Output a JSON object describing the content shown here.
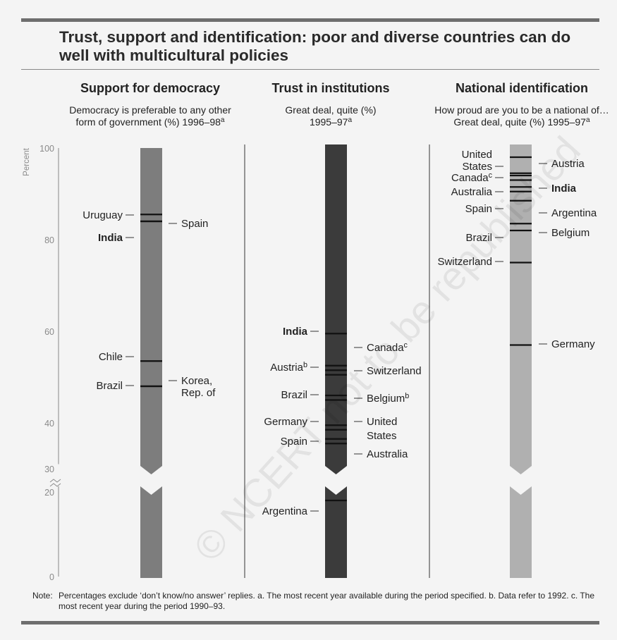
{
  "title": "Trust, support and identification: poor and diverse countries can do well with multicultural policies",
  "watermark": "© NCERT not to be republished",
  "note": {
    "lead": "Note:",
    "text": "Percentages exclude ‘don’t know/no answer’ replies. a. The most recent year available during the period specified. b. Data refer to 1992.  c. The most recent year during the period 1990–93."
  },
  "colors": {
    "bar1": "#7d7d7d",
    "bar2": "#3b3b3b",
    "bar3": "#b0b0b0",
    "text": "#222222",
    "axis": "#888888"
  },
  "chart_data": {
    "type": "bar",
    "ylabel": "Percent",
    "y_ticks": [
      0,
      20,
      30,
      40,
      60,
      80,
      100
    ],
    "axis_break": [
      20,
      30
    ],
    "panels": [
      {
        "title": "Support for democracy",
        "subtitle": [
          "Democracy is preferable to any other",
          "form of government (%) 1996–98"
        ],
        "subtitle_sup": "a",
        "points": [
          {
            "label": "Uruguay",
            "value": 85.5,
            "side": "left"
          },
          {
            "label": "Spain",
            "value": 84,
            "side": "right"
          },
          {
            "label": "India",
            "value": 84,
            "side": "left",
            "bold": true
          },
          {
            "label": "Chile",
            "value": 53.5,
            "side": "left"
          },
          {
            "label": "Brazil",
            "value": 48,
            "side": "left"
          },
          {
            "label": "Korea, Rep. of",
            "value": 48,
            "side": "right"
          }
        ]
      },
      {
        "title": "Trust in institutions",
        "subtitle": [
          "Great deal, quite (%)",
          "1995–97"
        ],
        "subtitle_sup": "a",
        "points": [
          {
            "label": "India",
            "value": 59.5,
            "side": "left",
            "bold": true
          },
          {
            "label": "Canada",
            "sup": "c",
            "value": 52.5,
            "side": "right"
          },
          {
            "label": "Austria",
            "sup": "b",
            "value": 51.5,
            "side": "left"
          },
          {
            "label": "Switzerland",
            "value": 50.5,
            "side": "right"
          },
          {
            "label": "Brazil",
            "value": 46,
            "side": "left"
          },
          {
            "label": "Belgium",
            "sup": "b",
            "value": 45,
            "side": "right"
          },
          {
            "label": "Germany",
            "value": 39.5,
            "side": "left"
          },
          {
            "label": "United States",
            "value": 38.5,
            "side": "right"
          },
          {
            "label": "Spain",
            "value": 36.5,
            "side": "left"
          },
          {
            "label": "Australia",
            "value": 35.5,
            "side": "right"
          },
          {
            "label": "Argentina",
            "value": 18,
            "side": "left"
          }
        ]
      },
      {
        "title": "National identification",
        "subtitle": [
          "How proud are you to be a national of…",
          "Great deal, quite (%) 1995–97"
        ],
        "subtitle_sup": "a",
        "points": [
          {
            "label": "United States",
            "value": 98,
            "side": "left"
          },
          {
            "label": "Canada",
            "sup": "c",
            "value": 94.5,
            "side": "left"
          },
          {
            "label": "Austria",
            "value": 94,
            "side": "right"
          },
          {
            "label": "Australia",
            "value": 93,
            "side": "left"
          },
          {
            "label": "India",
            "value": 91.5,
            "side": "right",
            "bold": true
          },
          {
            "label": "Spain",
            "value": 90.5,
            "side": "left"
          },
          {
            "label": "Argentina",
            "value": 88.5,
            "side": "right"
          },
          {
            "label": "Brazil",
            "value": 83.5,
            "side": "left"
          },
          {
            "label": "Belgium",
            "value": 82,
            "side": "right"
          },
          {
            "label": "Switzerland",
            "value": 75,
            "side": "left"
          },
          {
            "label": "Germany",
            "value": 57,
            "side": "right"
          }
        ]
      }
    ]
  }
}
